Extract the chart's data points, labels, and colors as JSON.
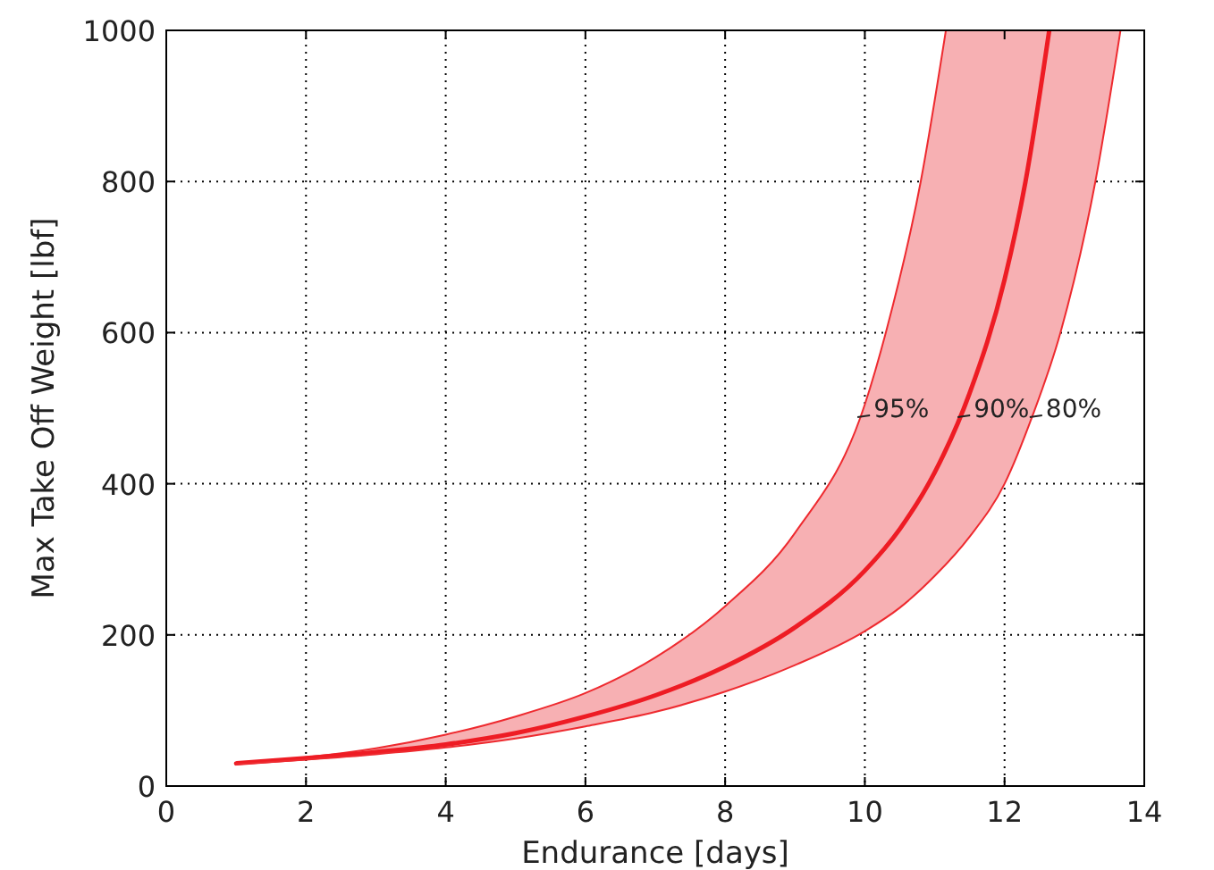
{
  "chart_data": {
    "type": "line",
    "xlabel": "Endurance [days]",
    "ylabel": "Max Take Off Weight [lbf]",
    "xlim": [
      0,
      14
    ],
    "ylim": [
      0,
      1000
    ],
    "xticks": [
      0,
      2,
      4,
      6,
      8,
      10,
      12,
      14
    ],
    "yticks": [
      0,
      200,
      400,
      600,
      800,
      1000
    ],
    "grid": true,
    "marker": "none",
    "line_style": "solid",
    "series": [
      {
        "name": "95%",
        "color": "#ee2a2f",
        "x": [
          1,
          2,
          3,
          4,
          5,
          6,
          7,
          8,
          9,
          10,
          10.3,
          10.8,
          11.16
        ],
        "values": [
          30,
          38,
          50,
          68,
          92,
          123,
          170,
          238,
          335,
          505,
          600,
          800,
          1000
        ]
      },
      {
        "name": "90%",
        "color": "#ee1c24",
        "x": [
          1,
          2,
          3,
          4,
          5,
          6,
          7,
          8,
          9,
          10,
          10.5,
          11,
          11.5,
          12,
          12.3,
          12.64
        ],
        "values": [
          30,
          37,
          45,
          55,
          70,
          92,
          120,
          158,
          210,
          285,
          340,
          415,
          520,
          670,
          800,
          1000
        ]
      },
      {
        "name": "80%",
        "color": "#ee2a2f",
        "x": [
          1,
          2,
          3,
          4,
          5,
          6,
          7,
          8,
          9,
          10,
          10.5,
          11,
          11.5,
          12,
          12.4,
          12.8,
          13.3,
          13.66
        ],
        "values": [
          29,
          35,
          42,
          51,
          63,
          79,
          98,
          125,
          160,
          205,
          236,
          278,
          330,
          400,
          490,
          600,
          800,
          1000
        ]
      }
    ]
  }
}
